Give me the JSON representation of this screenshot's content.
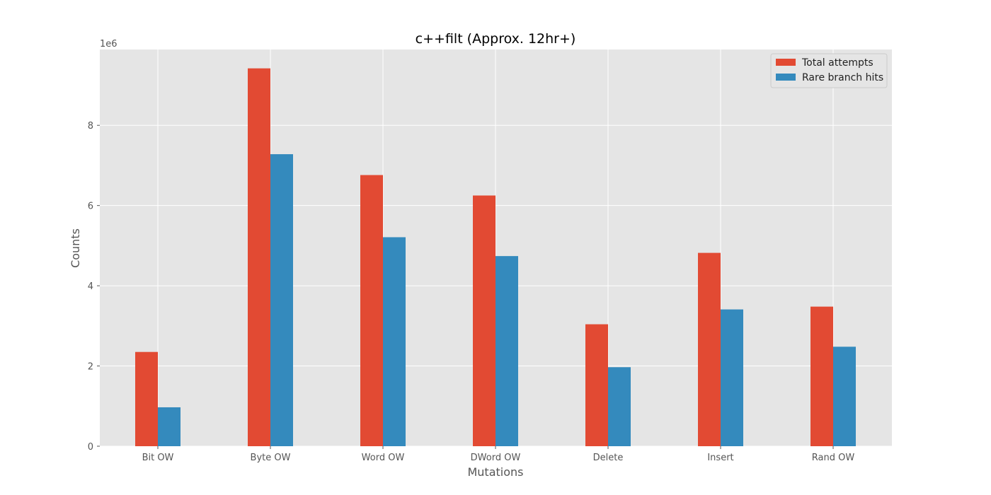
{
  "chart_data": {
    "type": "bar",
    "title": "c++filt (Approx. 12hr+)",
    "xlabel": "Mutations",
    "ylabel": "Counts",
    "y_multiplier_label": "1e6",
    "categories": [
      "Bit OW",
      "Byte OW",
      "Word OW",
      "DWord OW",
      "Delete",
      "Insert",
      "Rand OW"
    ],
    "series": [
      {
        "name": "Total attempts",
        "color": "#E24A33",
        "values": [
          2350000,
          9420000,
          6760000,
          6250000,
          3040000,
          4820000,
          3480000
        ]
      },
      {
        "name": "Rare branch hits",
        "color": "#348ABD",
        "values": [
          970000,
          7280000,
          5210000,
          4740000,
          1970000,
          3410000,
          2480000
        ]
      }
    ],
    "ylim": [
      0,
      9890000
    ],
    "yticks": [
      0,
      2000000,
      4000000,
      6000000,
      8000000
    ],
    "ytick_labels": [
      "0",
      "2",
      "4",
      "6",
      "8"
    ],
    "grid": true,
    "legend_position": "top-right",
    "background_color": "#E5E5E5",
    "grid_color": "#FFFFFF"
  }
}
